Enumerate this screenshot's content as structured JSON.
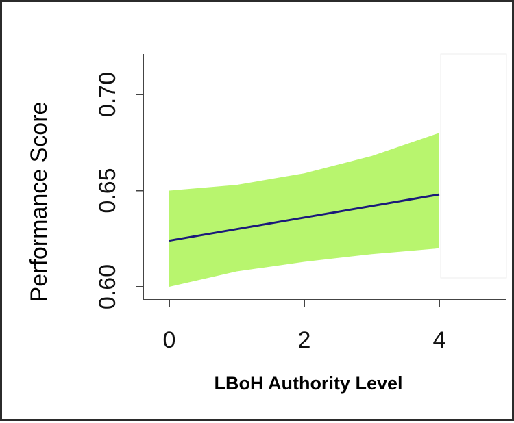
{
  "chart_data": {
    "type": "line",
    "title": "",
    "xlabel": "LBoH Authority Level",
    "ylabel": "Performance Score",
    "xlim": [
      0,
      4
    ],
    "ylim": [
      0.6,
      0.72
    ],
    "x_ticks": [
      "0",
      "2",
      "4"
    ],
    "y_ticks": [
      "0.60",
      "0.65",
      "0.70"
    ],
    "grid": false,
    "series": [
      {
        "x": [
          0,
          1,
          2,
          3,
          4
        ],
        "y": [
          0.624,
          0.63,
          0.636,
          0.642,
          0.648
        ],
        "lower": [
          0.6,
          0.608,
          0.613,
          0.617,
          0.62
        ],
        "upper": [
          0.65,
          0.653,
          0.659,
          0.668,
          0.68
        ]
      }
    ],
    "colors": {
      "line": "#1a1a7a",
      "band": "#b8f56e",
      "axis": "#444444"
    }
  }
}
